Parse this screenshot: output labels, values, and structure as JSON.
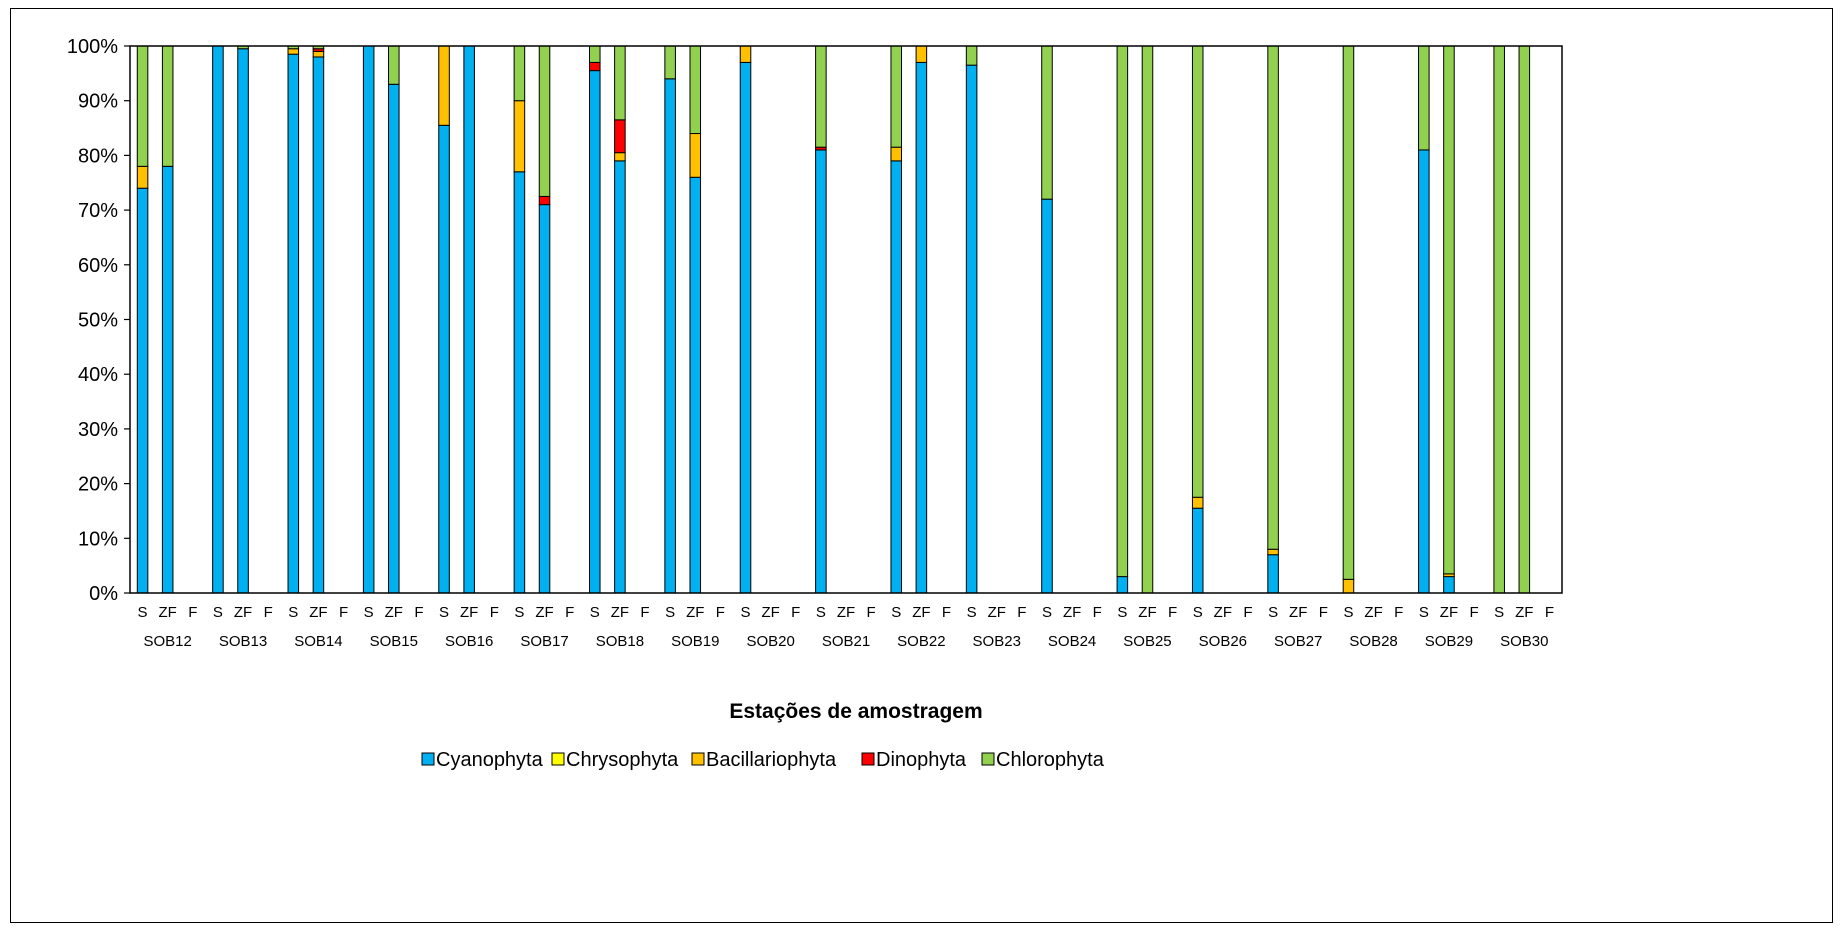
{
  "chart_data": {
    "type": "bar",
    "stacked": true,
    "normalized": true,
    "xlabel": "Estações de amostragem",
    "ylabel": "",
    "ylim": [
      0,
      100
    ],
    "y_tick_labels": [
      "0%",
      "10%",
      "20%",
      "30%",
      "40%",
      "50%",
      "60%",
      "70%",
      "80%",
      "90%",
      "100%"
    ],
    "sub_categories": [
      "S",
      "ZF",
      "F"
    ],
    "groups": [
      "SOB12",
      "SOB13",
      "SOB14",
      "SOB15",
      "SOB16",
      "SOB17",
      "SOB18",
      "SOB19",
      "SOB20",
      "SOB21",
      "SOB22",
      "SOB23",
      "SOB24",
      "SOB25",
      "SOB26",
      "SOB27",
      "SOB28",
      "SOB29",
      "SOB30"
    ],
    "legend_position": "bottom",
    "grid": false,
    "series": [
      {
        "name": "Cyanophyta",
        "color": "#00b0f0",
        "values": [
          [
            74,
            78,
            null
          ],
          [
            100,
            99.5,
            null
          ],
          [
            98.5,
            98,
            null
          ],
          [
            100,
            93,
            null
          ],
          [
            85.5,
            100,
            null
          ],
          [
            77,
            71,
            null
          ],
          [
            95.5,
            79,
            null
          ],
          [
            94,
            76,
            null
          ],
          [
            97,
            null,
            null
          ],
          [
            81,
            null,
            null
          ],
          [
            79,
            97,
            null
          ],
          [
            96.5,
            null,
            null
          ],
          [
            72,
            null,
            null
          ],
          [
            3,
            0,
            null
          ],
          [
            15.5,
            null,
            null
          ],
          [
            7,
            null,
            null
          ],
          [
            0,
            null,
            null
          ],
          [
            81,
            3,
            null
          ],
          [
            0,
            0,
            null
          ]
        ]
      },
      {
        "name": "Chrysophyta",
        "color": "#ffff00",
        "values": [
          [
            0,
            0,
            null
          ],
          [
            0,
            0,
            null
          ],
          [
            0,
            0,
            null
          ],
          [
            0,
            0,
            null
          ],
          [
            0,
            0,
            null
          ],
          [
            0,
            0,
            null
          ],
          [
            0,
            0,
            null
          ],
          [
            0,
            0,
            null
          ],
          [
            0,
            null,
            null
          ],
          [
            0,
            null,
            null
          ],
          [
            0,
            0,
            null
          ],
          [
            0,
            null,
            null
          ],
          [
            0,
            null,
            null
          ],
          [
            0,
            0,
            null
          ],
          [
            0,
            null,
            null
          ],
          [
            0,
            null,
            null
          ],
          [
            0,
            null,
            null
          ],
          [
            0,
            0,
            null
          ],
          [
            0,
            0,
            null
          ]
        ]
      },
      {
        "name": "Bacillariophyta",
        "color": "#ffc000",
        "values": [
          [
            4,
            0,
            null
          ],
          [
            0,
            0,
            null
          ],
          [
            1,
            1,
            null
          ],
          [
            0,
            0,
            null
          ],
          [
            14.5,
            0,
            null
          ],
          [
            13,
            0,
            null
          ],
          [
            0,
            1.5,
            null
          ],
          [
            0,
            8,
            null
          ],
          [
            3,
            null,
            null
          ],
          [
            0,
            null,
            null
          ],
          [
            2.5,
            3,
            null
          ],
          [
            0,
            null,
            null
          ],
          [
            0,
            null,
            null
          ],
          [
            0,
            0,
            null
          ],
          [
            2,
            null,
            null
          ],
          [
            1,
            null,
            null
          ],
          [
            2.5,
            null,
            null
          ],
          [
            0,
            0.5,
            null
          ],
          [
            0,
            0,
            null
          ]
        ]
      },
      {
        "name": "Dinophyta",
        "color": "#ff0000",
        "values": [
          [
            0,
            0,
            null
          ],
          [
            0,
            0,
            null
          ],
          [
            0,
            0.5,
            null
          ],
          [
            0,
            0,
            null
          ],
          [
            0,
            0,
            null
          ],
          [
            0,
            1.5,
            null
          ],
          [
            1.5,
            6,
            null
          ],
          [
            0,
            0,
            null
          ],
          [
            0,
            null,
            null
          ],
          [
            0.5,
            null,
            null
          ],
          [
            0,
            0,
            null
          ],
          [
            0,
            null,
            null
          ],
          [
            0,
            null,
            null
          ],
          [
            0,
            0,
            null
          ],
          [
            0,
            null,
            null
          ],
          [
            0,
            null,
            null
          ],
          [
            0,
            null,
            null
          ],
          [
            0,
            0,
            null
          ],
          [
            0,
            0,
            null
          ]
        ]
      },
      {
        "name": "Chlorophyta",
        "color": "#92d050",
        "values": [
          [
            22,
            22,
            null
          ],
          [
            0,
            0.5,
            null
          ],
          [
            0.5,
            0.5,
            null
          ],
          [
            0,
            7,
            null
          ],
          [
            0,
            0,
            null
          ],
          [
            10,
            27.5,
            null
          ],
          [
            3,
            13.5,
            null
          ],
          [
            6,
            16,
            null
          ],
          [
            0,
            null,
            null
          ],
          [
            18.5,
            null,
            null
          ],
          [
            18.5,
            0,
            null
          ],
          [
            3.5,
            null,
            null
          ],
          [
            28,
            null,
            null
          ],
          [
            97,
            100,
            null
          ],
          [
            82.5,
            null,
            null
          ],
          [
            92,
            null,
            null
          ],
          [
            97.5,
            null,
            null
          ],
          [
            19,
            96.5,
            null
          ],
          [
            100,
            100,
            null
          ]
        ]
      }
    ]
  }
}
